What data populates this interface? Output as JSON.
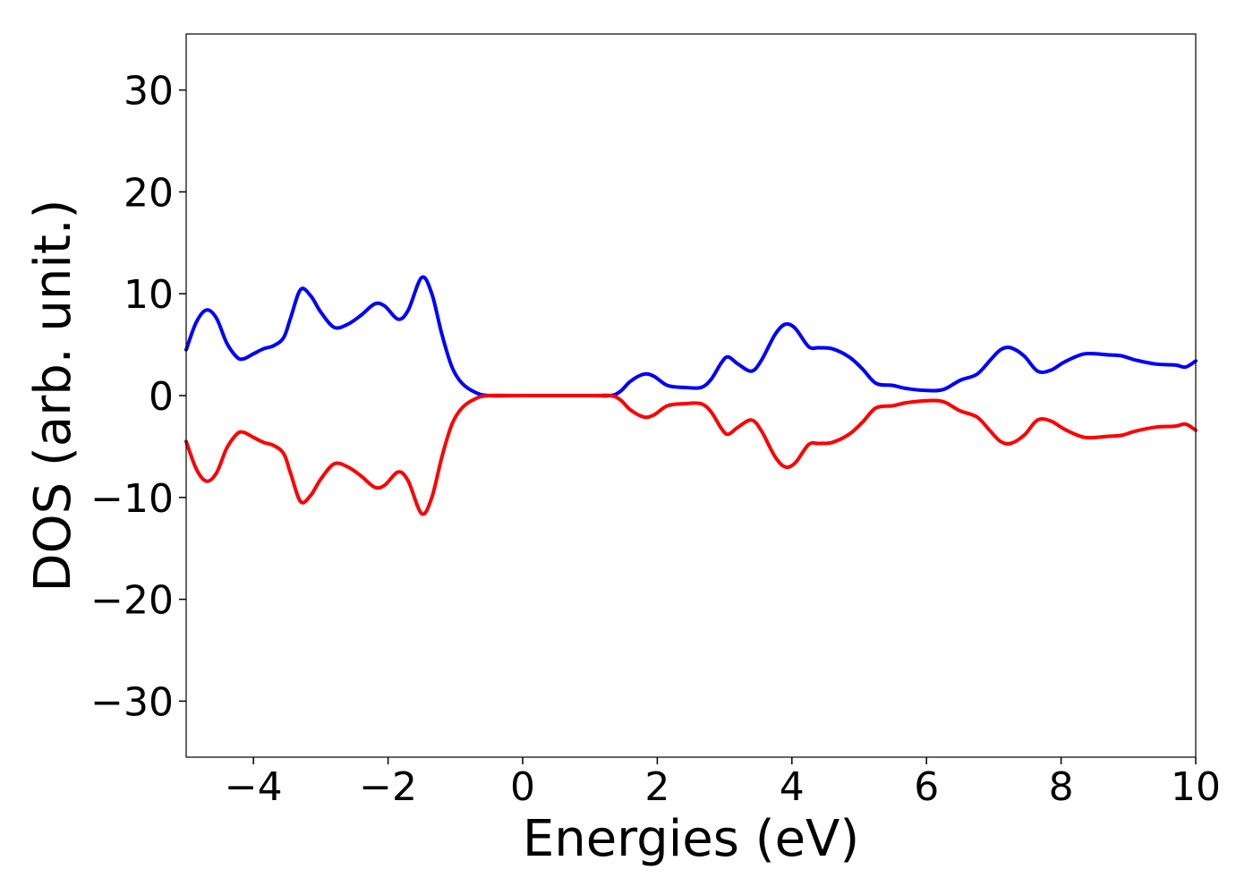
{
  "chart_data": {
    "type": "line",
    "title": "",
    "xlabel": "Energies (eV)",
    "ylabel": "DOS (arb. unit.)",
    "xlim": [
      -5,
      10
    ],
    "ylim": [
      -35.5,
      35.5
    ],
    "grid": false,
    "legend": "none",
    "xticks": [
      {
        "value": -4,
        "label": "−4"
      },
      {
        "value": -2,
        "label": "−2"
      },
      {
        "value": 0,
        "label": "0"
      },
      {
        "value": 2,
        "label": "2"
      },
      {
        "value": 4,
        "label": "4"
      },
      {
        "value": 6,
        "label": "6"
      },
      {
        "value": 8,
        "label": "8"
      },
      {
        "value": 10,
        "label": "10"
      }
    ],
    "yticks": [
      {
        "value": -30,
        "label": "−30"
      },
      {
        "value": -20,
        "label": "−20"
      },
      {
        "value": -10,
        "label": "−10"
      },
      {
        "value": 0,
        "label": "0"
      },
      {
        "value": 10,
        "label": "10"
      },
      {
        "value": 20,
        "label": "20"
      },
      {
        "value": 30,
        "label": "30"
      }
    ],
    "series": [
      {
        "color": "#0000ff",
        "points": [
          [
            -5.0,
            4.5
          ],
          [
            -4.85,
            7.2
          ],
          [
            -4.7,
            8.4
          ],
          [
            -4.55,
            7.6
          ],
          [
            -4.4,
            5.2
          ],
          [
            -4.25,
            3.8
          ],
          [
            -4.15,
            3.6
          ],
          [
            -4.0,
            4.1
          ],
          [
            -3.85,
            4.6
          ],
          [
            -3.7,
            4.9
          ],
          [
            -3.55,
            5.7
          ],
          [
            -3.45,
            7.6
          ],
          [
            -3.3,
            10.4
          ],
          [
            -3.15,
            9.8
          ],
          [
            -3.0,
            8.2
          ],
          [
            -2.8,
            6.7
          ],
          [
            -2.6,
            7.0
          ],
          [
            -2.4,
            7.9
          ],
          [
            -2.2,
            9.0
          ],
          [
            -2.05,
            8.8
          ],
          [
            -1.85,
            7.5
          ],
          [
            -1.7,
            8.4
          ],
          [
            -1.5,
            11.6
          ],
          [
            -1.35,
            10.0
          ],
          [
            -1.2,
            6.0
          ],
          [
            -1.05,
            2.8
          ],
          [
            -0.9,
            1.2
          ],
          [
            -0.7,
            0.3
          ],
          [
            -0.5,
            0.0
          ],
          [
            0.0,
            0.0
          ],
          [
            1.0,
            0.0
          ],
          [
            1.3,
            0.0
          ],
          [
            1.45,
            0.4
          ],
          [
            1.6,
            1.4
          ],
          [
            1.8,
            2.1
          ],
          [
            1.95,
            1.9
          ],
          [
            2.15,
            1.0
          ],
          [
            2.4,
            0.8
          ],
          [
            2.65,
            0.8
          ],
          [
            2.8,
            1.6
          ],
          [
            2.95,
            3.2
          ],
          [
            3.05,
            3.8
          ],
          [
            3.2,
            3.1
          ],
          [
            3.4,
            2.4
          ],
          [
            3.55,
            3.5
          ],
          [
            3.75,
            6.0
          ],
          [
            3.9,
            7.0
          ],
          [
            4.05,
            6.6
          ],
          [
            4.25,
            4.8
          ],
          [
            4.4,
            4.7
          ],
          [
            4.6,
            4.6
          ],
          [
            4.85,
            3.8
          ],
          [
            5.05,
            2.6
          ],
          [
            5.25,
            1.2
          ],
          [
            5.5,
            1.0
          ],
          [
            5.7,
            0.7
          ],
          [
            6.0,
            0.5
          ],
          [
            6.25,
            0.6
          ],
          [
            6.5,
            1.5
          ],
          [
            6.75,
            2.1
          ],
          [
            6.95,
            3.5
          ],
          [
            7.1,
            4.5
          ],
          [
            7.25,
            4.7
          ],
          [
            7.45,
            3.9
          ],
          [
            7.65,
            2.4
          ],
          [
            7.85,
            2.5
          ],
          [
            8.05,
            3.3
          ],
          [
            8.35,
            4.1
          ],
          [
            8.7,
            4.0
          ],
          [
            8.9,
            3.9
          ],
          [
            9.1,
            3.5
          ],
          [
            9.4,
            3.1
          ],
          [
            9.7,
            3.0
          ],
          [
            9.85,
            2.8
          ],
          [
            10.0,
            3.4
          ]
        ]
      },
      {
        "color": "#ff0000",
        "points": [
          [
            -5.0,
            -4.5
          ],
          [
            -4.85,
            -7.2
          ],
          [
            -4.7,
            -8.4
          ],
          [
            -4.55,
            -7.6
          ],
          [
            -4.4,
            -5.2
          ],
          [
            -4.25,
            -3.8
          ],
          [
            -4.15,
            -3.6
          ],
          [
            -4.0,
            -4.1
          ],
          [
            -3.85,
            -4.6
          ],
          [
            -3.7,
            -4.9
          ],
          [
            -3.55,
            -5.7
          ],
          [
            -3.45,
            -7.6
          ],
          [
            -3.3,
            -10.4
          ],
          [
            -3.15,
            -9.8
          ],
          [
            -3.0,
            -8.2
          ],
          [
            -2.8,
            -6.7
          ],
          [
            -2.6,
            -7.0
          ],
          [
            -2.4,
            -7.9
          ],
          [
            -2.2,
            -9.0
          ],
          [
            -2.05,
            -8.8
          ],
          [
            -1.85,
            -7.5
          ],
          [
            -1.7,
            -8.4
          ],
          [
            -1.5,
            -11.6
          ],
          [
            -1.35,
            -10.0
          ],
          [
            -1.2,
            -6.0
          ],
          [
            -1.05,
            -2.8
          ],
          [
            -0.9,
            -1.2
          ],
          [
            -0.7,
            -0.3
          ],
          [
            -0.5,
            0.0
          ],
          [
            0.0,
            0.0
          ],
          [
            1.0,
            0.0
          ],
          [
            1.3,
            0.0
          ],
          [
            1.45,
            -0.4
          ],
          [
            1.6,
            -1.4
          ],
          [
            1.8,
            -2.1
          ],
          [
            1.95,
            -1.9
          ],
          [
            2.15,
            -1.0
          ],
          [
            2.4,
            -0.8
          ],
          [
            2.65,
            -0.8
          ],
          [
            2.8,
            -1.6
          ],
          [
            2.95,
            -3.2
          ],
          [
            3.05,
            -3.8
          ],
          [
            3.2,
            -3.1
          ],
          [
            3.4,
            -2.4
          ],
          [
            3.55,
            -3.5
          ],
          [
            3.75,
            -6.0
          ],
          [
            3.9,
            -7.0
          ],
          [
            4.05,
            -6.6
          ],
          [
            4.25,
            -4.8
          ],
          [
            4.4,
            -4.7
          ],
          [
            4.6,
            -4.6
          ],
          [
            4.85,
            -3.8
          ],
          [
            5.05,
            -2.6
          ],
          [
            5.25,
            -1.2
          ],
          [
            5.5,
            -1.0
          ],
          [
            5.7,
            -0.7
          ],
          [
            6.0,
            -0.5
          ],
          [
            6.25,
            -0.6
          ],
          [
            6.5,
            -1.5
          ],
          [
            6.75,
            -2.1
          ],
          [
            6.95,
            -3.5
          ],
          [
            7.1,
            -4.5
          ],
          [
            7.25,
            -4.7
          ],
          [
            7.45,
            -3.9
          ],
          [
            7.65,
            -2.4
          ],
          [
            7.85,
            -2.5
          ],
          [
            8.05,
            -3.3
          ],
          [
            8.35,
            -4.1
          ],
          [
            8.7,
            -4.0
          ],
          [
            8.9,
            -3.9
          ],
          [
            9.1,
            -3.5
          ],
          [
            9.4,
            -3.1
          ],
          [
            9.7,
            -3.0
          ],
          [
            9.85,
            -2.8
          ],
          [
            10.0,
            -3.4
          ]
        ]
      }
    ]
  }
}
